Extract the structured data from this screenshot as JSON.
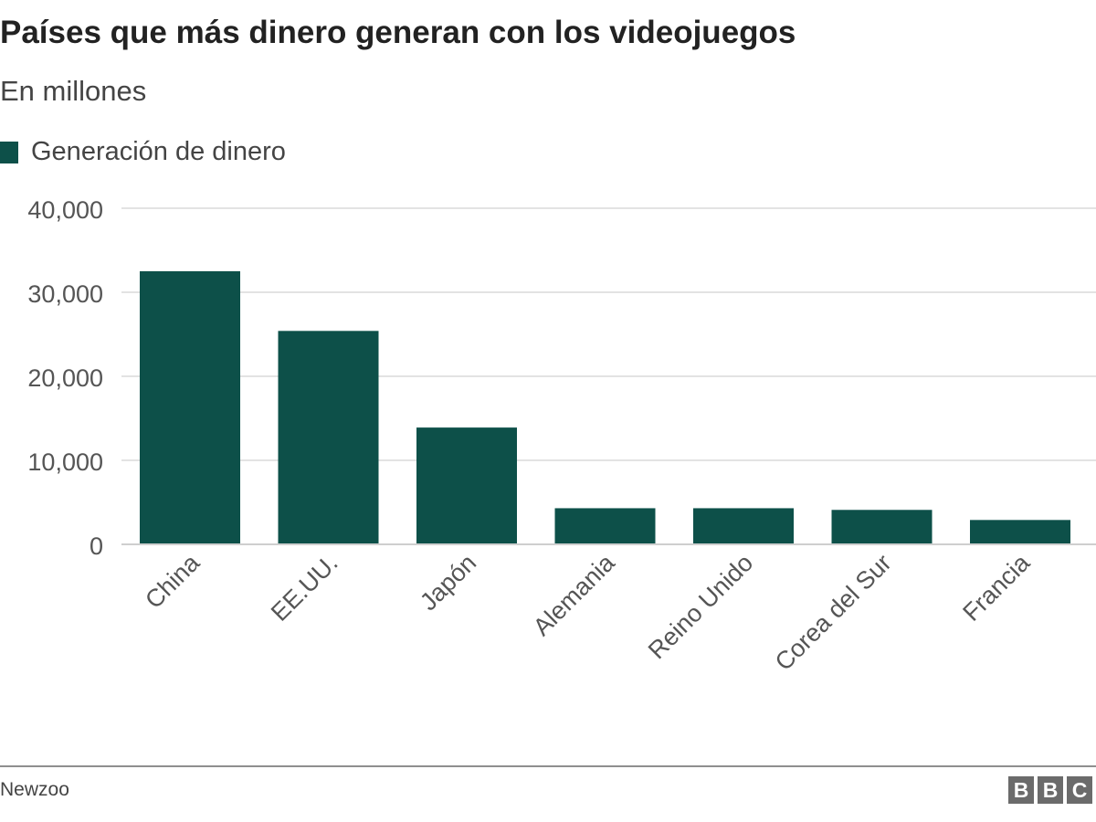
{
  "chart_data": {
    "type": "bar",
    "title": "Países que más dinero generan con los videojuegos",
    "subtitle": "En millones",
    "categories": [
      "China",
      "EE.UU.",
      "Japón",
      "Alemania",
      "Reino Unido",
      "Corea del Sur",
      "Francia"
    ],
    "series": [
      {
        "name": "Generación de dinero",
        "values": [
          32500,
          25400,
          13900,
          4300,
          4300,
          4100,
          2900
        ],
        "color": "#0d5049"
      }
    ],
    "yticks": [
      0,
      10000,
      20000,
      30000,
      40000
    ],
    "ytick_labels": [
      "0",
      "10,000",
      "20,000",
      "30,000",
      "40,000"
    ],
    "ylim": [
      0,
      40000
    ],
    "grid": true,
    "legend": "top-left"
  },
  "footer": {
    "source": "Newzoo",
    "logo_letters": [
      "B",
      "B",
      "C"
    ]
  }
}
